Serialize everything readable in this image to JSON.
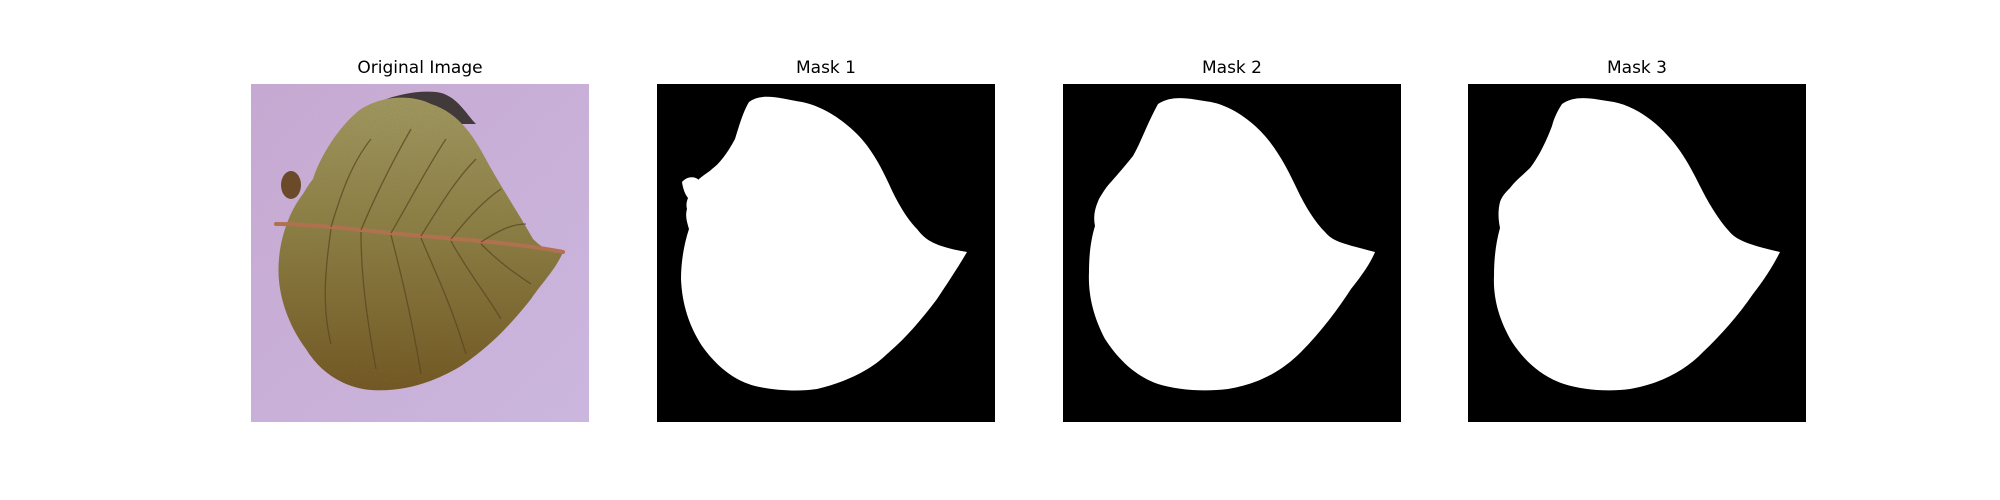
{
  "panels": [
    {
      "title": "Original Image"
    },
    {
      "title": "Mask 1"
    },
    {
      "title": "Mask 2"
    },
    {
      "title": "Mask 3"
    }
  ],
  "colors": {
    "mask_background": "#000000",
    "mask_foreground": "#ffffff",
    "photo_background": "#c9aed6",
    "leaf_upper": "#9a8f5a",
    "leaf_lower": "#7a5a22",
    "midrib": "#b0714f"
  }
}
